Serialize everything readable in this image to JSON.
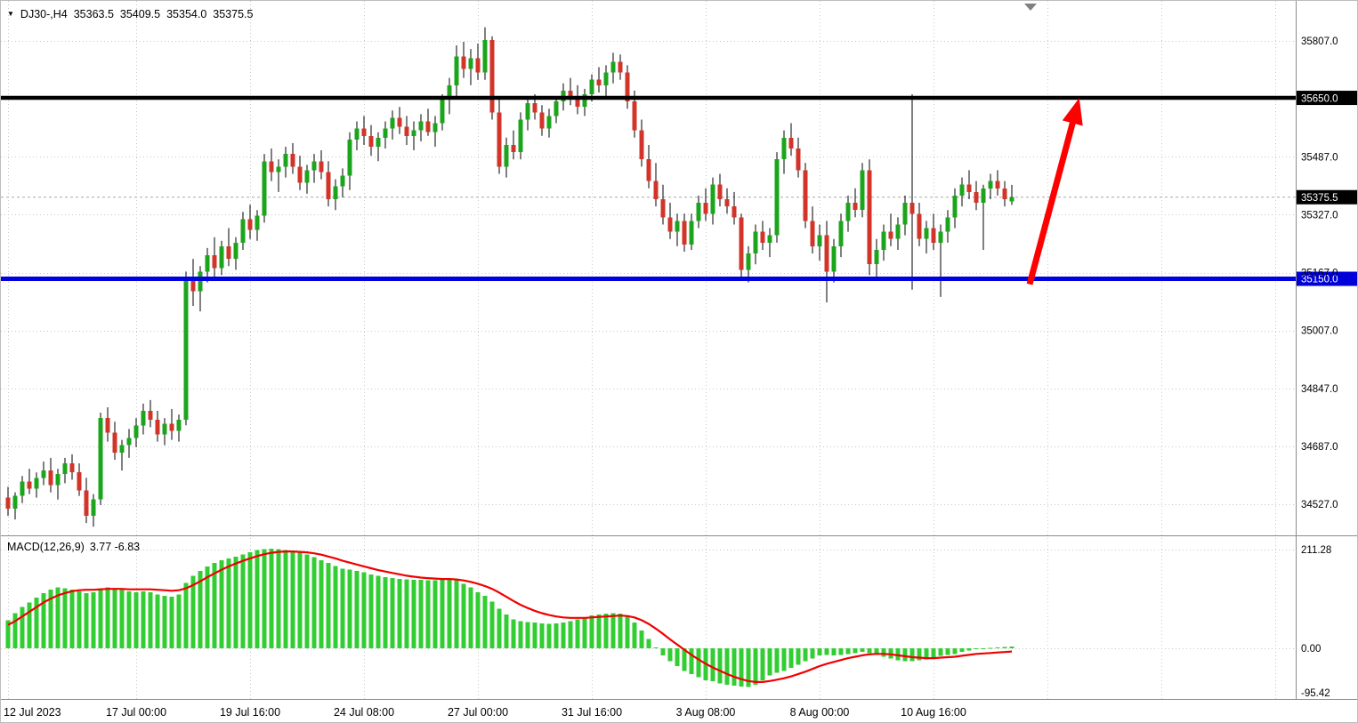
{
  "window": {
    "symbol_info": {
      "symbol": "DJ30-,H4",
      "open": "35363.5",
      "high": "35409.5",
      "low": "35354.0",
      "close": "35375.5"
    },
    "indicator_info": {
      "name": "MACD(12,26,9)",
      "values": "3.77 -6.83"
    }
  },
  "colors": {
    "bull": "#1ca51c",
    "bear": "#d2342a",
    "wick": "#000000",
    "macd_hist": "#32cd32",
    "macd_signal": "#f00000",
    "resistance": "#000000",
    "support": "#0000e0",
    "arrow": "#ff0000",
    "grid": "#c8c8c8",
    "axis_text": "#000000",
    "current_line": "#a8a8a8",
    "badge_black": "#000000",
    "badge_blue": "#0000d8",
    "separator": "#8c8c8c",
    "marker_gray": "#808080"
  },
  "price_axis": {
    "ticks": [
      {
        "label": "35807.0",
        "value": 35807
      },
      {
        "label": "",
        "value": 35647
      },
      {
        "label": "35487.0",
        "value": 35487
      },
      {
        "label": "35327.0",
        "value": 35327
      },
      {
        "label": "35167.0",
        "value": 35167
      },
      {
        "label": "35007.0",
        "value": 35007
      },
      {
        "label": "34847.0",
        "value": 34847
      },
      {
        "label": "34687.0",
        "value": 34687
      },
      {
        "label": "34527.0",
        "value": 34527
      }
    ],
    "badges": [
      {
        "text": "35650.0",
        "value": 35650,
        "bg": "#000000"
      },
      {
        "text": "35375.5",
        "value": 35375.5,
        "bg": "#000000"
      },
      {
        "text": "35150.0",
        "value": 35150,
        "bg": "#0000d8"
      }
    ]
  },
  "macd_axis": {
    "ticks": [
      {
        "label": "211.28",
        "value": 211.28,
        "gridline": true
      },
      {
        "label": "0.00",
        "value": 0,
        "gridline": true
      },
      {
        "label": "-95.42",
        "value": -95.42,
        "gridline": false
      }
    ]
  },
  "time_axis": {
    "labels": [
      {
        "text": "12 Jul 2023",
        "index": 0
      },
      {
        "text": "17 Jul 00:00",
        "index": 18
      },
      {
        "text": "19 Jul 16:00",
        "index": 34
      },
      {
        "text": "24 Jul 08:00",
        "index": 50
      },
      {
        "text": "27 Jul 00:00",
        "index": 66
      },
      {
        "text": "31 Jul 16:00",
        "index": 82
      },
      {
        "text": "3 Aug 08:00",
        "index": 98
      },
      {
        "text": "8 Aug 00:00",
        "index": 114
      },
      {
        "text": "10 Aug 16:00",
        "index": 130
      }
    ]
  },
  "annotations": {
    "trend_arrow": {
      "from_index": 143.5,
      "from_price": 35135,
      "to_index": 149.8,
      "to_price": 35600
    }
  },
  "chart_data": {
    "type": "candlestick_with_macd",
    "symbol": "DJ30-",
    "timeframe": "H4",
    "title": "DJ30-,H4 35363.5 35409.5 35354.0 35375.5",
    "ohlc_display": {
      "open": 35363.5,
      "high": 35409.5,
      "low": 35354.0,
      "close": 35375.5
    },
    "levels": {
      "resistance": 35650.0,
      "support": 35150.0,
      "last_price": 35375.5
    },
    "ylim_main": [
      34441,
      35918
    ],
    "ylim_macd": [
      -108.3,
      235.6
    ],
    "x_range": {
      "start": "12 Jul 2023",
      "end": "11 Aug 2023",
      "bars": 142
    },
    "candles": [
      [
        34545,
        34575,
        34495,
        34515
      ],
      [
        34515,
        34560,
        34485,
        34550
      ],
      [
        34550,
        34605,
        34530,
        34590
      ],
      [
        34590,
        34625,
        34555,
        34570
      ],
      [
        34570,
        34615,
        34545,
        34600
      ],
      [
        34600,
        34645,
        34580,
        34620
      ],
      [
        34620,
        34655,
        34560,
        34580
      ],
      [
        34580,
        34625,
        34540,
        34610
      ],
      [
        34610,
        34655,
        34585,
        34640
      ],
      [
        34640,
        34665,
        34595,
        34615
      ],
      [
        34615,
        34640,
        34550,
        34565
      ],
      [
        34565,
        34600,
        34475,
        34495
      ],
      [
        34495,
        34555,
        34465,
        34540
      ],
      [
        34540,
        34780,
        34525,
        34765
      ],
      [
        34765,
        34795,
        34700,
        34725
      ],
      [
        34725,
        34755,
        34650,
        34670
      ],
      [
        34670,
        34705,
        34620,
        34690
      ],
      [
        34690,
        34735,
        34655,
        34710
      ],
      [
        34710,
        34765,
        34685,
        34745
      ],
      [
        34745,
        34805,
        34720,
        34785
      ],
      [
        34785,
        34815,
        34740,
        34760
      ],
      [
        34760,
        34785,
        34700,
        34720
      ],
      [
        34720,
        34765,
        34690,
        34750
      ],
      [
        34750,
        34790,
        34705,
        34730
      ],
      [
        34730,
        34775,
        34700,
        34760
      ],
      [
        34760,
        35170,
        34745,
        35155
      ],
      [
        35155,
        35205,
        35075,
        35115
      ],
      [
        35115,
        35185,
        35060,
        35170
      ],
      [
        35170,
        35235,
        35140,
        35215
      ],
      [
        35215,
        35265,
        35155,
        35180
      ],
      [
        35180,
        35255,
        35160,
        35240
      ],
      [
        35240,
        35290,
        35185,
        35205
      ],
      [
        35205,
        35265,
        35175,
        35250
      ],
      [
        35250,
        35335,
        35230,
        35315
      ],
      [
        35315,
        35355,
        35260,
        35285
      ],
      [
        35285,
        35340,
        35255,
        35325
      ],
      [
        35325,
        35495,
        35305,
        35475
      ],
      [
        35475,
        35510,
        35420,
        35445
      ],
      [
        35445,
        35480,
        35390,
        35460
      ],
      [
        35460,
        35515,
        35430,
        35495
      ],
      [
        35495,
        35525,
        35440,
        35460
      ],
      [
        35460,
        35490,
        35395,
        35415
      ],
      [
        35415,
        35465,
        35385,
        35450
      ],
      [
        35450,
        35495,
        35415,
        35475
      ],
      [
        35475,
        35505,
        35425,
        35445
      ],
      [
        35445,
        35475,
        35350,
        35370
      ],
      [
        35370,
        35425,
        35340,
        35405
      ],
      [
        35405,
        35455,
        35375,
        35435
      ],
      [
        35435,
        35555,
        35395,
        35535
      ],
      [
        35535,
        35585,
        35505,
        35565
      ],
      [
        35565,
        35600,
        35520,
        35545
      ],
      [
        35545,
        35575,
        35490,
        35515
      ],
      [
        35515,
        35555,
        35475,
        35540
      ],
      [
        35540,
        35585,
        35510,
        35565
      ],
      [
        35565,
        35615,
        35535,
        35595
      ],
      [
        35595,
        35625,
        35550,
        35570
      ],
      [
        35570,
        35600,
        35520,
        35545
      ],
      [
        35545,
        35585,
        35505,
        35560
      ],
      [
        35560,
        35605,
        35530,
        35585
      ],
      [
        35585,
        35620,
        35545,
        35555
      ],
      [
        35555,
        35600,
        35515,
        35580
      ],
      [
        35580,
        35660,
        35560,
        35645
      ],
      [
        35645,
        35705,
        35605,
        35685
      ],
      [
        35685,
        35795,
        35655,
        35765
      ],
      [
        35765,
        35805,
        35705,
        35730
      ],
      [
        35730,
        35785,
        35685,
        35760
      ],
      [
        35760,
        35800,
        35700,
        35720
      ],
      [
        35720,
        35845,
        35700,
        35810
      ],
      [
        35810,
        35820,
        35590,
        35610
      ],
      [
        35610,
        35650,
        35440,
        35460
      ],
      [
        35460,
        35540,
        35430,
        35520
      ],
      [
        35520,
        35560,
        35480,
        35500
      ],
      [
        35500,
        35610,
        35480,
        35590
      ],
      [
        35590,
        35655,
        35560,
        35635
      ],
      [
        35635,
        35660,
        35590,
        35610
      ],
      [
        35610,
        35630,
        35545,
        35565
      ],
      [
        35565,
        35620,
        35540,
        35600
      ],
      [
        35600,
        35655,
        35580,
        35640
      ],
      [
        35640,
        35690,
        35615,
        35670
      ],
      [
        35670,
        35705,
        35630,
        35655
      ],
      [
        35655,
        35685,
        35605,
        35625
      ],
      [
        35625,
        35675,
        35600,
        35660
      ],
      [
        35660,
        35715,
        35640,
        35700
      ],
      [
        35700,
        35735,
        35665,
        35685
      ],
      [
        35685,
        35740,
        35650,
        35720
      ],
      [
        35720,
        35775,
        35690,
        35750
      ],
      [
        35750,
        35770,
        35700,
        35720
      ],
      [
        35720,
        35740,
        35620,
        35640
      ],
      [
        35640,
        35670,
        35540,
        35560
      ],
      [
        35560,
        35590,
        35460,
        35480
      ],
      [
        35480,
        35520,
        35400,
        35420
      ],
      [
        35420,
        35470,
        35350,
        35370
      ],
      [
        35370,
        35410,
        35300,
        35320
      ],
      [
        35320,
        35360,
        35260,
        35280
      ],
      [
        35280,
        35330,
        35240,
        35310
      ],
      [
        35310,
        35330,
        35225,
        35245
      ],
      [
        35245,
        35330,
        35230,
        35310
      ],
      [
        35310,
        35380,
        35290,
        35360
      ],
      [
        35360,
        35400,
        35310,
        35330
      ],
      [
        35330,
        35430,
        35300,
        35410
      ],
      [
        35410,
        35440,
        35350,
        35370
      ],
      [
        35370,
        35400,
        35330,
        35350
      ],
      [
        35350,
        35390,
        35300,
        35320
      ],
      [
        35320,
        35330,
        35155,
        35175
      ],
      [
        35175,
        35240,
        35140,
        35220
      ],
      [
        35220,
        35300,
        35190,
        35280
      ],
      [
        35280,
        35310,
        35230,
        35250
      ],
      [
        35250,
        35290,
        35210,
        35270
      ],
      [
        35270,
        35500,
        35250,
        35480
      ],
      [
        35480,
        35560,
        35440,
        35540
      ],
      [
        35540,
        35580,
        35490,
        35510
      ],
      [
        35510,
        35540,
        35430,
        35450
      ],
      [
        35450,
        35470,
        35290,
        35310
      ],
      [
        35310,
        35350,
        35220,
        35240
      ],
      [
        35240,
        35300,
        35200,
        35270
      ],
      [
        35270,
        35310,
        35085,
        35170
      ],
      [
        35170,
        35260,
        35140,
        35240
      ],
      [
        35240,
        35330,
        35210,
        35310
      ],
      [
        35310,
        35380,
        35280,
        35360
      ],
      [
        35360,
        35400,
        35320,
        35340
      ],
      [
        35340,
        35470,
        35320,
        35450
      ],
      [
        35450,
        35480,
        35160,
        35190
      ],
      [
        35190,
        35260,
        35150,
        35230
      ],
      [
        35230,
        35300,
        35200,
        35280
      ],
      [
        35280,
        35330,
        35240,
        35260
      ],
      [
        35260,
        35320,
        35230,
        35300
      ],
      [
        35300,
        35380,
        35270,
        35360
      ],
      [
        35360,
        35660,
        35120,
        35330
      ],
      [
        35330,
        35360,
        35240,
        35260
      ],
      [
        35260,
        35310,
        35220,
        35290
      ],
      [
        35290,
        35330,
        35230,
        35250
      ],
      [
        35250,
        35300,
        35100,
        35280
      ],
      [
        35280,
        35340,
        35250,
        35320
      ],
      [
        35320,
        35400,
        35290,
        35380
      ],
      [
        35380,
        35430,
        35350,
        35410
      ],
      [
        35410,
        35450,
        35370,
        35390
      ],
      [
        35390,
        35420,
        35340,
        35360
      ],
      [
        35360,
        35410,
        35230,
        35400
      ],
      [
        35400,
        35440,
        35370,
        35420
      ],
      [
        35420,
        35450,
        35380,
        35400
      ],
      [
        35400,
        35420,
        35350,
        35370
      ],
      [
        35363.5,
        35409.5,
        35354.0,
        35375.5
      ]
    ],
    "macd": {
      "params": "12,26,9",
      "histogram": [
        60,
        75,
        88,
        98,
        108,
        118,
        125,
        130,
        128,
        125,
        122,
        118,
        120,
        128,
        130,
        128,
        125,
        122,
        120,
        122,
        120,
        115,
        112,
        110,
        115,
        140,
        155,
        165,
        175,
        182,
        188,
        192,
        196,
        200,
        205,
        210,
        212,
        213,
        212,
        210,
        207,
        204,
        200,
        195,
        188,
        182,
        176,
        170,
        168,
        165,
        162,
        158,
        155,
        152,
        150,
        148,
        147,
        146,
        146,
        145,
        145,
        146,
        147,
        145,
        138,
        130,
        120,
        112,
        100,
        85,
        72,
        62,
        58,
        56,
        55,
        53,
        52,
        53,
        55,
        58,
        62,
        66,
        70,
        72,
        74,
        75,
        74,
        68,
        55,
        38,
        20,
        2,
        -15,
        -28,
        -38,
        -48,
        -55,
        -62,
        -68,
        -70,
        -75,
        -78,
        -80,
        -82,
        -83,
        -78,
        -68,
        -58,
        -52,
        -48,
        -42,
        -35,
        -28,
        -22,
        -15,
        -14,
        -15,
        -14,
        -12,
        -10,
        -8,
        -10,
        -14,
        -18,
        -22,
        -26,
        -28,
        -28,
        -26,
        -24,
        -20,
        -16,
        -14,
        -12,
        -8,
        -5,
        -2,
        0,
        1,
        2,
        3,
        3.77
      ],
      "signal": [
        50,
        58,
        68,
        78,
        88,
        98,
        106,
        113,
        118,
        122,
        124,
        125,
        125,
        126,
        127,
        127,
        127,
        126,
        126,
        126,
        126,
        125,
        124,
        123,
        124,
        128,
        135,
        143,
        152,
        160,
        168,
        175,
        181,
        187,
        192,
        197,
        201,
        204,
        206,
        207,
        207,
        206,
        205,
        203,
        200,
        196,
        192,
        187,
        183,
        179,
        175,
        171,
        167,
        164,
        161,
        158,
        155,
        153,
        151,
        150,
        149,
        148,
        148,
        147,
        145,
        142,
        138,
        133,
        127,
        119,
        110,
        101,
        93,
        86,
        80,
        75,
        71,
        68,
        66,
        65,
        65,
        65,
        66,
        67,
        68,
        69,
        70,
        69,
        66,
        60,
        52,
        42,
        31,
        19,
        8,
        -3,
        -14,
        -24,
        -33,
        -41,
        -48,
        -55,
        -61,
        -66,
        -70,
        -72,
        -72,
        -70,
        -67,
        -64,
        -60,
        -55,
        -50,
        -44,
        -38,
        -33,
        -29,
        -25,
        -21,
        -18,
        -15,
        -13,
        -12,
        -12,
        -13,
        -15,
        -17,
        -19,
        -20,
        -21,
        -21,
        -20,
        -19,
        -18,
        -16,
        -14,
        -12,
        -11,
        -10,
        -9,
        -8,
        -6.83
      ]
    }
  }
}
